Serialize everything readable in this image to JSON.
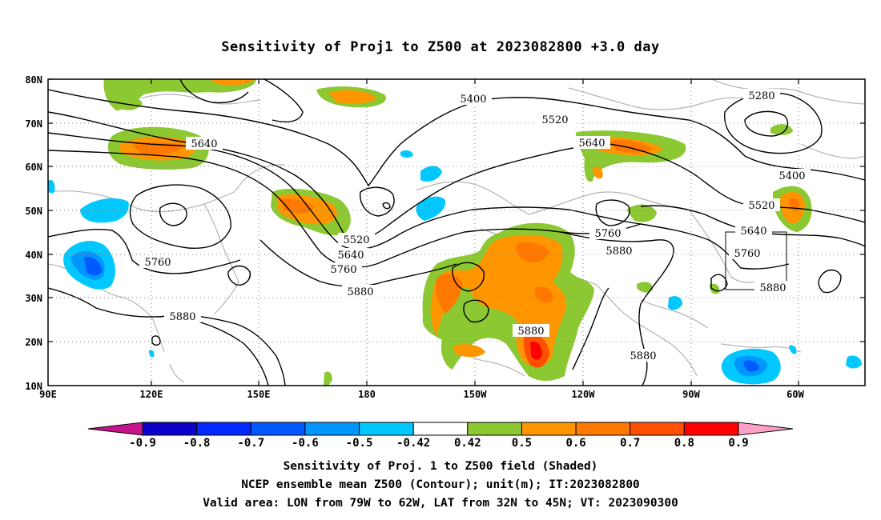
{
  "title": "Sensitivity of Proj1 to Z500 at 2023082800 +3.0 day",
  "axes": {
    "lat_labels": [
      "80N",
      "70N",
      "60N",
      "50N",
      "40N",
      "30N",
      "20N",
      "10N"
    ],
    "lon_labels": [
      "90E",
      "120E",
      "150E",
      "180",
      "150W",
      "120W",
      "90W",
      "60W"
    ]
  },
  "contour_labels": [
    "5280",
    "5400",
    "5400",
    "5520",
    "5520",
    "5520",
    "5640",
    "5640",
    "5640",
    "5640",
    "5760",
    "5760",
    "5760",
    "5760",
    "5880",
    "5880",
    "5880",
    "5880",
    "5880",
    "5880"
  ],
  "colorbar": {
    "labels": [
      "-0.9",
      "-0.8",
      "-0.7",
      "-0.6",
      "-0.5",
      "-0.42",
      "0.42",
      "0.5",
      "0.6",
      "0.7",
      "0.8",
      "0.9"
    ],
    "colors": [
      "#0a00c8",
      "#0028ff",
      "#005aff",
      "#0096ff",
      "#00c8ff",
      "#ffffff",
      "#8cc832",
      "#ff9600",
      "#ff7800",
      "#ff5000",
      "#ff0000"
    ],
    "low_end_color": "#c8148c",
    "high_end_color": "#ffa0c8"
  },
  "valid_box": {
    "lon_west": -79,
    "lon_east": -62,
    "lat_south": 32,
    "lat_north": 45
  },
  "captions": [
    "Sensitivity of Proj. 1 to Z500 field (Shaded)",
    "NCEP ensemble mean Z500 (Contour); unit(m); IT:2023082800",
    "Valid area: LON from 79W to 62W, LAT from 32N to 45N; VT: 2023090300"
  ]
}
